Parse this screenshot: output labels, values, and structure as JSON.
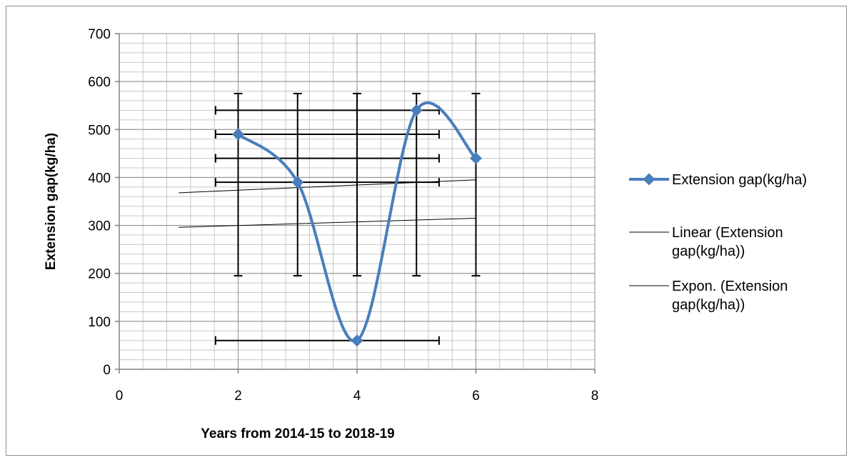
{
  "chart_data": {
    "type": "scatter",
    "title": "",
    "xlabel": "Years from 2014-15 to 2018-19",
    "ylabel": "Extension gap(kg/ha)",
    "xlim": [
      0,
      8
    ],
    "ylim": [
      0,
      700
    ],
    "x_ticks": [
      "0",
      "2",
      "4",
      "6",
      "8"
    ],
    "y_ticks": [
      "0",
      "100",
      "200",
      "300",
      "400",
      "500",
      "600",
      "700"
    ],
    "x_major_step": 2,
    "x_minor_step": 0.4,
    "y_major_step": 100,
    "y_minor_step": 20,
    "grid": true,
    "legend_position": "right",
    "series": [
      {
        "name": "Extension gap(kg/ha)",
        "style": "smooth-line-with-diamond-markers",
        "color": "#4a7ebb",
        "x": [
          2,
          3,
          4,
          5,
          6
        ],
        "y": [
          490,
          390,
          60,
          540,
          440
        ],
        "error_y": [
          [
            195,
            575
          ],
          [
            195,
            575
          ],
          [
            195,
            575
          ],
          [
            195,
            575
          ],
          [
            195,
            575
          ]
        ],
        "error_x": [
          [
            1.62,
            5.38
          ],
          [
            1.62,
            5.38
          ],
          [
            1.62,
            5.38
          ],
          [
            1.62,
            5.38
          ],
          [
            1.62,
            5.38
          ]
        ]
      }
    ],
    "trendlines": [
      {
        "name": "Linear (Extension gap(kg/ha))",
        "name_lines": [
          "Linear (Extension",
          "gap(kg/ha))"
        ],
        "type": "linear",
        "x": [
          1,
          6
        ],
        "y": [
          368,
          395
        ],
        "color": "#000000"
      },
      {
        "name": "Expon. (Extension gap(kg/ha))",
        "name_lines": [
          "Expon. (Extension",
          "gap(kg/ha))"
        ],
        "type": "exponential",
        "x": [
          1,
          6
        ],
        "y": [
          296,
          315
        ],
        "color": "#000000"
      }
    ]
  }
}
